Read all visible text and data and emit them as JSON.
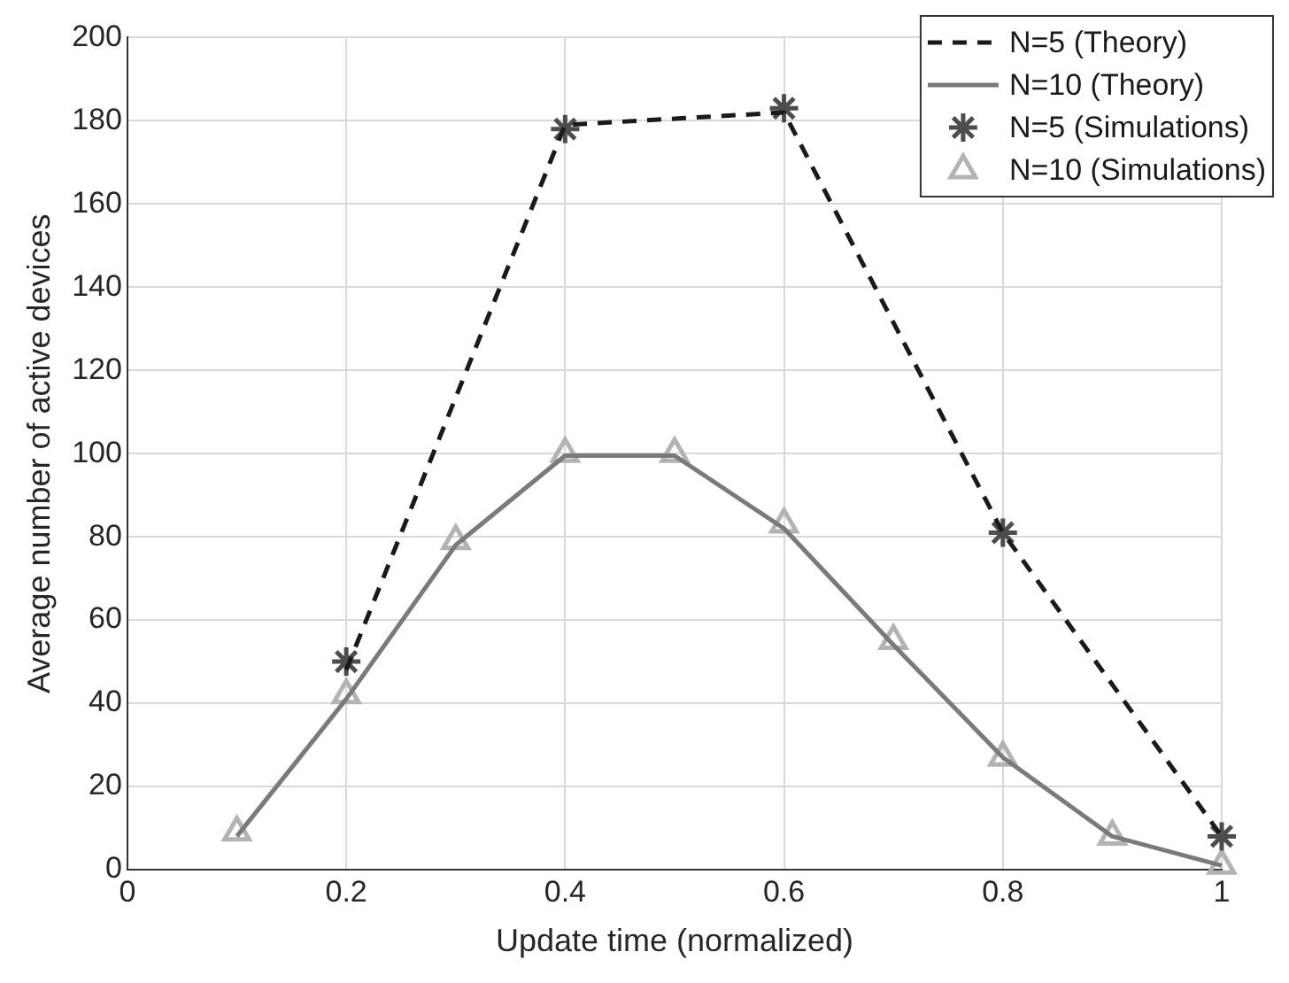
{
  "chart_data": {
    "type": "line",
    "xlabel": "Update time (normalized)",
    "ylabel": "Average number of active devices",
    "xlim": [
      0,
      1
    ],
    "xticks": [
      0,
      0.2,
      0.4,
      0.6,
      0.8,
      1
    ],
    "ylim": [
      0,
      200
    ],
    "yticks": [
      0,
      20,
      40,
      60,
      80,
      100,
      120,
      140,
      160,
      180,
      200
    ],
    "grid": true,
    "legend": "top right",
    "series": [
      {
        "name": "N=5 (Theory)",
        "type": "line",
        "color": "#1a1a1a",
        "line_style": "dashed",
        "marker": "none",
        "x": [
          0.2,
          0.4,
          0.6,
          0.8,
          1
        ],
        "values": [
          48,
          179,
          182,
          81,
          8
        ]
      },
      {
        "name": "N=10 (Theory)",
        "type": "line",
        "color": "#7a7a7a",
        "line_style": "solid",
        "marker": "none",
        "x": [
          0.1,
          0.2,
          0.3,
          0.4,
          0.5,
          0.6,
          0.7,
          0.8,
          0.9,
          1
        ],
        "values": [
          8,
          41,
          78,
          99.5,
          99.5,
          82,
          54,
          27,
          8,
          1
        ]
      },
      {
        "name": "N=5 (Simulations)",
        "type": "scatter",
        "color": "#4d4d4d",
        "marker": "cross",
        "x": [
          0.2,
          0.4,
          0.6,
          0.8,
          1
        ],
        "values": [
          50,
          178,
          183,
          81,
          8
        ]
      },
      {
        "name": "N=10 (Simulations)",
        "type": "scatter",
        "color": "#b3b3b3",
        "marker": "triangle",
        "x": [
          0.1,
          0.2,
          0.3,
          0.4,
          0.5,
          0.6,
          0.7,
          0.8,
          0.9,
          1
        ],
        "values": [
          9,
          42,
          79,
          100,
          100,
          83,
          55,
          27,
          8,
          1
        ]
      }
    ]
  }
}
